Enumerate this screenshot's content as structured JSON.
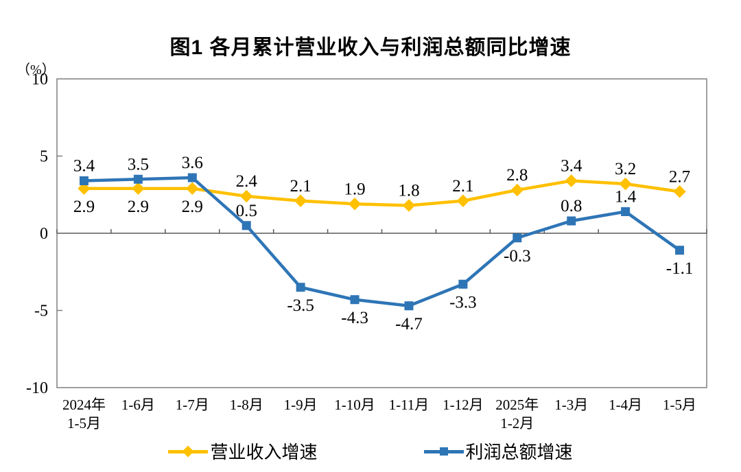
{
  "title": "图1  各月累计营业收入与利润总额同比增速",
  "y_axis_unit": "（%）",
  "chart_data": {
    "type": "line",
    "title": "图1 各月累计营业收入与利润总额同比增速",
    "ylabel": "（%）",
    "xlabel": "",
    "ylim": [
      -10,
      10
    ],
    "yticks": [
      10,
      5,
      0,
      -5,
      -10
    ],
    "grid": false,
    "legend_position": "bottom",
    "categories": [
      "2024年\n1-5月",
      "1-6月",
      "1-7月",
      "1-8月",
      "1-9月",
      "1-10月",
      "1-11月",
      "1-12月",
      "2025年\n1-2月",
      "1-3月",
      "1-4月",
      "1-5月"
    ],
    "series": [
      {
        "name": "营业收入增速",
        "color": "#FFC000",
        "marker": "diamond",
        "values": [
          2.9,
          2.9,
          2.9,
          2.4,
          2.1,
          1.9,
          1.8,
          2.1,
          2.8,
          3.4,
          3.2,
          2.7
        ],
        "label_pos": [
          "below",
          "below",
          "below",
          "above",
          "above",
          "above",
          "above",
          "above",
          "above",
          "above",
          "above",
          "above"
        ]
      },
      {
        "name": "利润总额增速",
        "color": "#2E75B6",
        "marker": "square",
        "values": [
          3.4,
          3.5,
          3.6,
          0.5,
          -3.5,
          -4.3,
          -4.7,
          -3.3,
          -0.3,
          0.8,
          1.4,
          -1.1
        ],
        "label_pos": [
          "above",
          "above",
          "above",
          "above",
          "below",
          "below",
          "below",
          "below",
          "below",
          "above",
          "above",
          "below"
        ]
      }
    ],
    "axis_color": "#595959",
    "border_color": "#7F7F7F",
    "text_color": "#000000"
  }
}
